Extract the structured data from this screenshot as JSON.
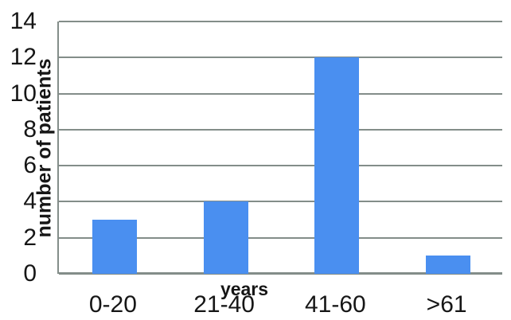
{
  "chart_data": {
    "type": "bar",
    "categories": [
      "0-20",
      "21-40",
      "41-60",
      ">61"
    ],
    "values": [
      3,
      4,
      12,
      1
    ],
    "title": "",
    "xlabel": "years",
    "ylabel": "number of patients",
    "ylim": [
      0,
      14
    ],
    "ytick_step": 2,
    "yticks": [
      0,
      2,
      4,
      6,
      8,
      10,
      12,
      14
    ],
    "grid": "horizontal-only",
    "legend": "none",
    "plot_border": "left-and-bottom-only",
    "bar_color": "#4a8ff0",
    "grid_color": "#838d89",
    "text_color": "#161616"
  }
}
